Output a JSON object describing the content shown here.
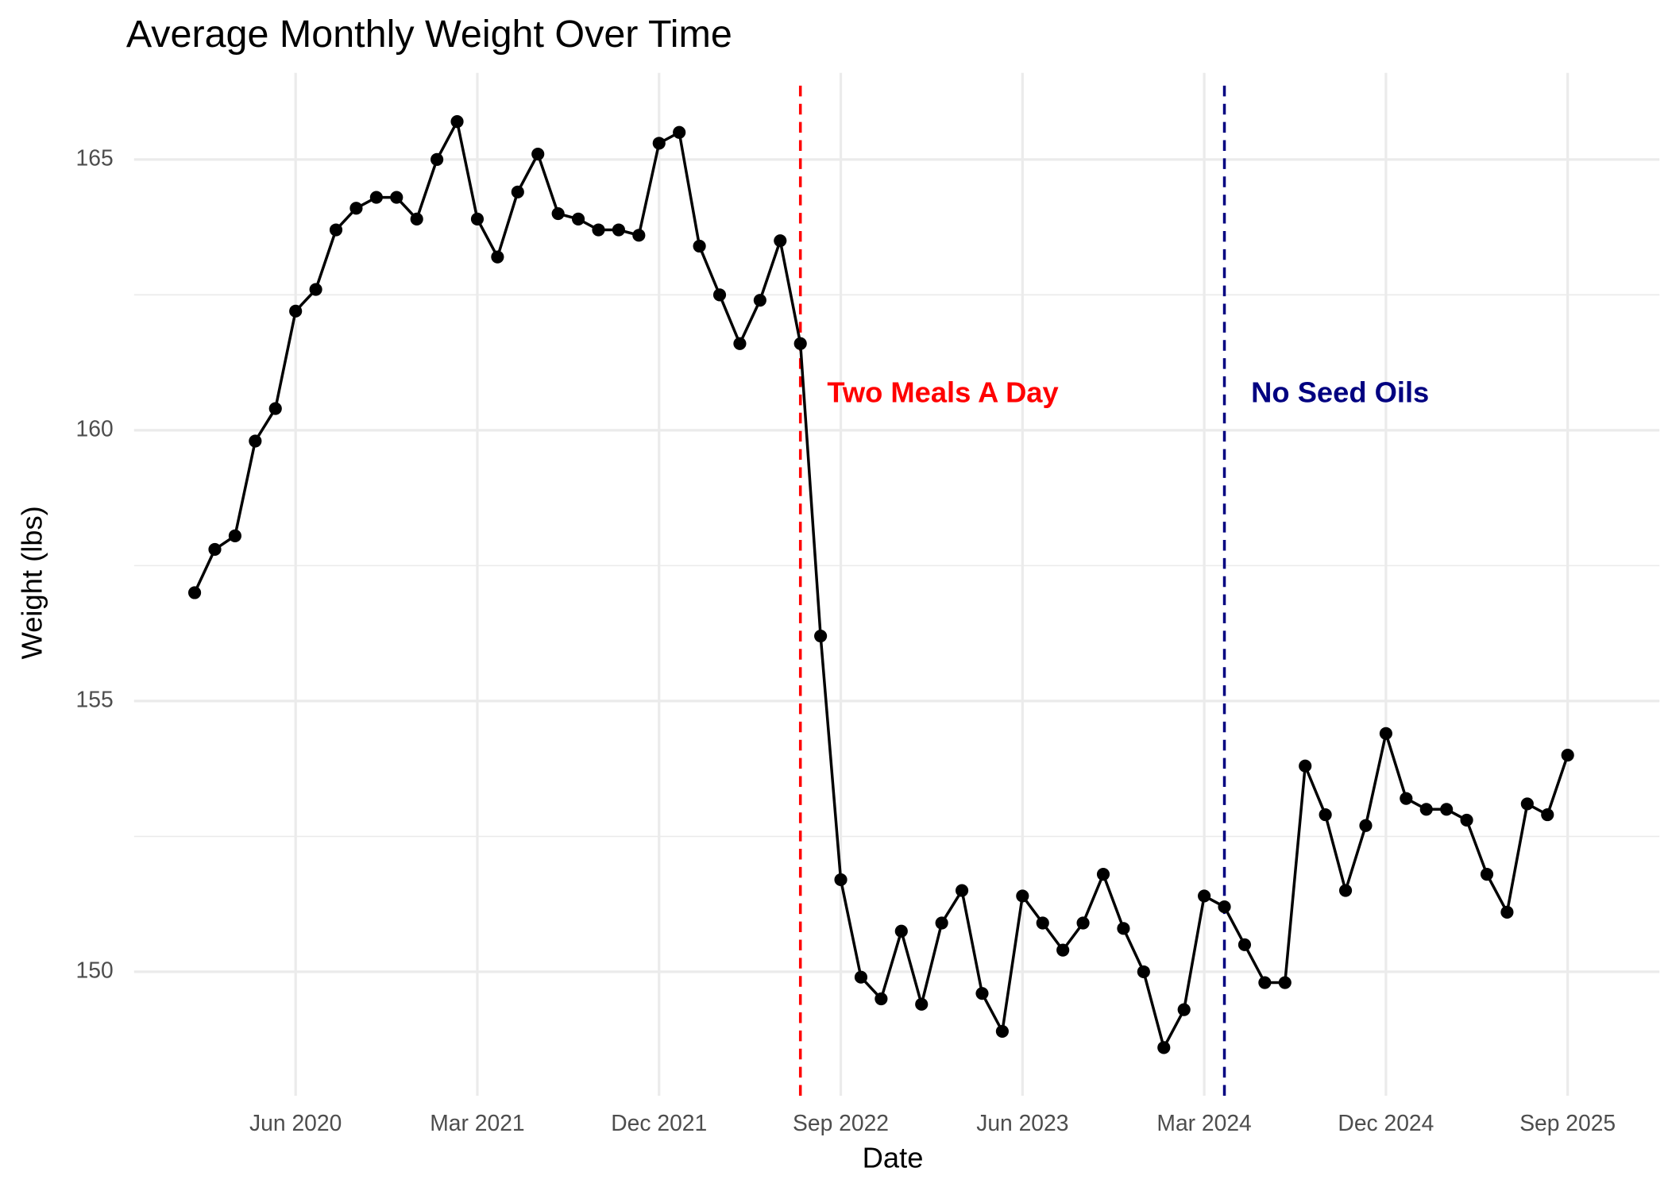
{
  "chart_data": {
    "type": "line",
    "title": "Average Monthly Weight Over Time",
    "x_label": "Date",
    "y_label": "Weight (lbs)",
    "x": [
      "2020-01",
      "2020-02",
      "2020-03",
      "2020-04",
      "2020-05",
      "2020-06",
      "2020-07",
      "2020-08",
      "2020-09",
      "2020-10",
      "2020-11",
      "2020-12",
      "2021-01",
      "2021-02",
      "2021-03",
      "2021-04",
      "2021-05",
      "2021-06",
      "2021-07",
      "2021-08",
      "2021-09",
      "2021-10",
      "2021-11",
      "2021-12",
      "2022-01",
      "2022-02",
      "2022-03",
      "2022-04",
      "2022-05",
      "2022-06",
      "2022-07",
      "2022-08",
      "2022-09",
      "2022-10",
      "2022-11",
      "2022-12",
      "2023-01",
      "2023-02",
      "2023-03",
      "2023-04",
      "2023-05",
      "2023-06",
      "2023-07",
      "2023-08",
      "2023-09",
      "2023-10",
      "2023-11",
      "2023-12",
      "2024-01",
      "2024-02",
      "2024-03",
      "2024-04",
      "2024-05",
      "2024-06",
      "2024-07",
      "2024-08",
      "2024-09",
      "2024-10",
      "2024-11",
      "2024-12",
      "2025-01",
      "2025-02",
      "2025-03",
      "2025-04",
      "2025-05",
      "2025-06",
      "2025-07",
      "2025-08",
      "2025-09"
    ],
    "series": [
      {
        "name": "Weight",
        "color": "#000000",
        "values": [
          157.0,
          157.8,
          158.05,
          159.8,
          160.4,
          162.2,
          162.6,
          163.7,
          164.1,
          164.3,
          164.3,
          163.9,
          165.0,
          165.7,
          163.9,
          163.2,
          164.4,
          165.1,
          164.0,
          163.9,
          163.7,
          163.7,
          163.6,
          165.3,
          165.5,
          163.4,
          162.5,
          161.6,
          162.4,
          163.5,
          161.6,
          156.2,
          151.7,
          149.9,
          149.5,
          150.75,
          149.4,
          150.9,
          151.5,
          149.6,
          148.9,
          151.4,
          150.9,
          150.4,
          150.9,
          151.8,
          150.8,
          150.0,
          148.6,
          149.3,
          151.4,
          151.2,
          150.5,
          149.8,
          149.8,
          153.8,
          152.9,
          151.5,
          152.7,
          154.4,
          153.2,
          153.0,
          153.0,
          152.8,
          151.8,
          151.1,
          153.1,
          152.9,
          154.0
        ]
      }
    ],
    "annotations": [
      {
        "x": "2022-07",
        "color": "#ff0000",
        "label": "Two Meals A Day"
      },
      {
        "x": "2024-04",
        "color": "#000080",
        "label": "No Seed Oils"
      }
    ],
    "xlim": [
      "2019-10",
      "2026-01"
    ],
    "xticks": [
      {
        "value": "2020-06",
        "label": "Jun 2020"
      },
      {
        "value": "2021-03",
        "label": "Mar 2021"
      },
      {
        "value": "2021-12",
        "label": "Dec 2021"
      },
      {
        "value": "2022-09",
        "label": "Sep 2022"
      },
      {
        "value": "2023-06",
        "label": "Jun 2023"
      },
      {
        "value": "2024-03",
        "label": "Mar 2024"
      },
      {
        "value": "2024-12",
        "label": "Dec 2024"
      },
      {
        "value": "2025-09",
        "label": "Sep 2025"
      }
    ],
    "ylim": [
      147.8,
      166.6
    ],
    "yticks": [
      150,
      155,
      160,
      165
    ],
    "y_minor_ticks": [
      152.5,
      157.5,
      162.5
    ],
    "grid": true
  }
}
